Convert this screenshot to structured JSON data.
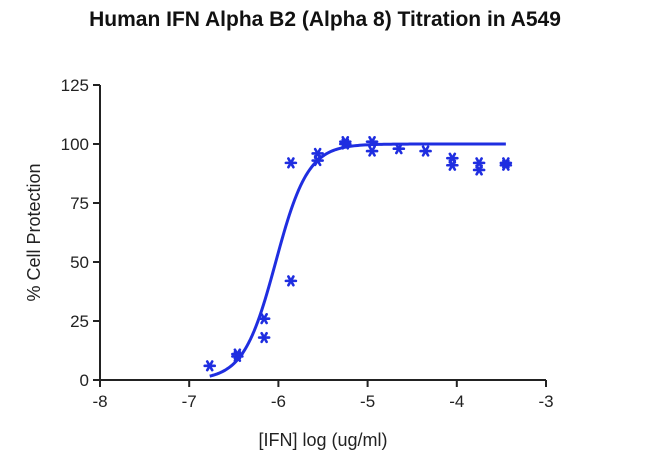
{
  "chart_data": {
    "type": "scatter",
    "title": "Human IFN Alpha B2 (Alpha 8) Titration in A549",
    "xlabel": "[IFN] log (ug/ml)",
    "ylabel": "% Cell Protection",
    "xlim": [
      -8,
      -3
    ],
    "ylim": [
      0,
      125
    ],
    "x_ticks": [
      -8,
      -7,
      -6,
      -5,
      -4,
      -3
    ],
    "x_tick_labels": [
      "-8",
      "-7",
      "-6",
      "-5",
      "-4",
      "-3"
    ],
    "y_ticks": [
      0,
      25,
      50,
      75,
      100,
      125
    ],
    "y_tick_labels": [
      "0",
      "25",
      "50",
      "75",
      "100",
      "125"
    ],
    "grid": false,
    "legend": "none",
    "series": [
      {
        "color": "#1f2ee0",
        "marker": "asterisk",
        "points": [
          {
            "x": -6.77,
            "y": 6
          },
          {
            "x": -6.46,
            "y": 11
          },
          {
            "x": -6.46,
            "y": 10
          },
          {
            "x": -6.16,
            "y": 26
          },
          {
            "x": -6.16,
            "y": 18
          },
          {
            "x": -5.86,
            "y": 92
          },
          {
            "x": -5.86,
            "y": 42
          },
          {
            "x": -5.56,
            "y": 96
          },
          {
            "x": -5.56,
            "y": 93
          },
          {
            "x": -5.25,
            "y": 101
          },
          {
            "x": -5.25,
            "y": 100
          },
          {
            "x": -4.95,
            "y": 101
          },
          {
            "x": -4.95,
            "y": 97
          },
          {
            "x": -4.65,
            "y": 98
          },
          {
            "x": -4.35,
            "y": 97
          },
          {
            "x": -4.05,
            "y": 94
          },
          {
            "x": -4.05,
            "y": 91
          },
          {
            "x": -3.75,
            "y": 92
          },
          {
            "x": -3.75,
            "y": 89
          },
          {
            "x": -3.45,
            "y": 92
          },
          {
            "x": -3.45,
            "y": 91
          }
        ],
        "fit": {
          "model": "four-parameter logistic",
          "bottom": 0,
          "top": 100,
          "log_ec50": -6.03,
          "hill_slope": 2.4,
          "x_range": [
            -6.77,
            -3.45
          ]
        }
      }
    ]
  }
}
